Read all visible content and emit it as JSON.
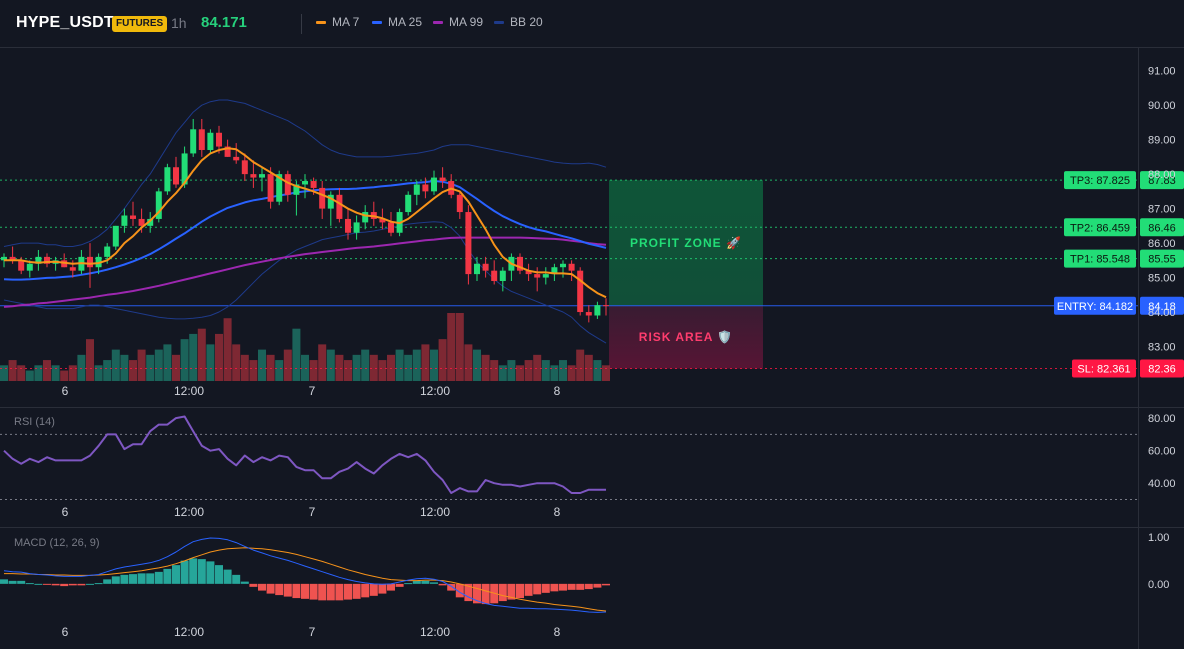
{
  "header": {
    "symbol": "HYPE_USDT",
    "badge": "FUTURES",
    "interval": "1h",
    "last_price": "84.171",
    "legend": [
      {
        "label": "MA 7",
        "color": "#f7931a"
      },
      {
        "label": "MA 25",
        "color": "#2962ff"
      },
      {
        "label": "MA 99",
        "color": "#9c27b0"
      },
      {
        "label": "BB 20",
        "color": "#1e3a8a"
      }
    ]
  },
  "colors": {
    "up": "#26a69a",
    "up_bright": "#22dd77",
    "down": "#f23645",
    "background": "#131722",
    "grid": "#1e222d",
    "profit": "#00c853",
    "risk": "#ff1744"
  },
  "chart_data": [
    {
      "type": "candlestick",
      "title": "",
      "time_labels": [
        "6",
        "12:00",
        "7",
        "12:00",
        "8"
      ],
      "y_ticks": [
        "91.00",
        "90.00",
        "89.00",
        "88.00",
        "87.00",
        "86.00",
        "85.00",
        "84.00",
        "83.00"
      ],
      "ylim": [
        82.0,
        91.6
      ],
      "price_levels": [
        {
          "name": "TP3",
          "label": "TP3: 87.825",
          "axis": "87.83",
          "value": 87.825,
          "color": "#22dd77"
        },
        {
          "name": "TP2",
          "label": "TP2: 86.459",
          "axis": "86.46",
          "value": 86.459,
          "color": "#22dd77"
        },
        {
          "name": "TP1",
          "label": "TP1: 85.548",
          "axis": "85.55",
          "value": 85.548,
          "color": "#22dd77"
        },
        {
          "name": "ENTRY",
          "label": "ENTRY: 84.182",
          "axis": "84.18",
          "value": 84.182,
          "color": "#2962ff"
        },
        {
          "name": "SL",
          "label": "SL: 82.361",
          "axis": "82.36",
          "value": 82.361,
          "color": "#ff1744"
        }
      ],
      "zones": [
        {
          "label": "PROFIT ZONE 🚀",
          "from": 84.182,
          "to": 87.825
        },
        {
          "label": "RISK AREA 🛡️",
          "from": 82.361,
          "to": 84.182
        }
      ],
      "candles": [
        [
          85.5,
          85.7,
          85.3,
          85.6
        ],
        [
          85.6,
          85.9,
          85.4,
          85.5
        ],
        [
          85.5,
          85.6,
          85.1,
          85.2
        ],
        [
          85.2,
          85.5,
          85.0,
          85.4
        ],
        [
          85.4,
          85.8,
          85.2,
          85.6
        ],
        [
          85.6,
          85.7,
          85.3,
          85.4
        ],
        [
          85.4,
          85.6,
          85.2,
          85.5
        ],
        [
          85.5,
          85.7,
          85.3,
          85.3
        ],
        [
          85.3,
          85.5,
          85.0,
          85.2
        ],
        [
          85.2,
          85.8,
          85.1,
          85.6
        ],
        [
          85.6,
          86.0,
          84.7,
          85.3
        ],
        [
          85.3,
          85.7,
          85.1,
          85.6
        ],
        [
          85.6,
          86.0,
          85.4,
          85.9
        ],
        [
          85.9,
          86.5,
          85.8,
          86.5
        ],
        [
          86.5,
          87.0,
          86.3,
          86.8
        ],
        [
          86.8,
          87.2,
          86.5,
          86.7
        ],
        [
          86.7,
          87.0,
          86.3,
          86.5
        ],
        [
          86.5,
          86.9,
          86.3,
          86.7
        ],
        [
          86.7,
          87.6,
          86.6,
          87.5
        ],
        [
          87.5,
          88.3,
          87.4,
          88.2
        ],
        [
          88.2,
          88.5,
          87.6,
          87.7
        ],
        [
          87.7,
          88.8,
          87.6,
          88.6
        ],
        [
          88.6,
          89.6,
          88.5,
          89.3
        ],
        [
          89.3,
          89.6,
          88.5,
          88.7
        ],
        [
          88.7,
          89.3,
          88.6,
          89.2
        ],
        [
          89.2,
          89.4,
          88.6,
          88.8
        ],
        [
          88.8,
          89.0,
          88.5,
          88.5
        ],
        [
          88.5,
          88.9,
          88.3,
          88.4
        ],
        [
          88.4,
          88.6,
          87.8,
          88.0
        ],
        [
          88.0,
          88.4,
          87.6,
          87.9
        ],
        [
          87.9,
          88.2,
          87.5,
          88.0
        ],
        [
          88.0,
          88.2,
          87.0,
          87.2
        ],
        [
          87.2,
          88.1,
          87.1,
          88.0
        ],
        [
          88.0,
          88.1,
          87.2,
          87.4
        ],
        [
          87.4,
          87.8,
          86.8,
          87.7
        ],
        [
          87.7,
          88.0,
          87.3,
          87.8
        ],
        [
          87.8,
          87.9,
          87.4,
          87.6
        ],
        [
          87.6,
          87.8,
          86.7,
          87.0
        ],
        [
          87.0,
          87.5,
          86.5,
          87.4
        ],
        [
          87.4,
          87.6,
          86.6,
          86.7
        ],
        [
          86.7,
          87.0,
          86.1,
          86.3
        ],
        [
          86.3,
          86.8,
          86.1,
          86.6
        ],
        [
          86.6,
          87.1,
          86.4,
          86.9
        ],
        [
          86.9,
          87.2,
          86.5,
          86.7
        ],
        [
          86.7,
          87.0,
          86.4,
          86.6
        ],
        [
          86.6,
          86.9,
          86.2,
          86.3
        ],
        [
          86.3,
          87.0,
          86.2,
          86.9
        ],
        [
          86.9,
          87.5,
          86.8,
          87.4
        ],
        [
          87.4,
          87.8,
          87.1,
          87.7
        ],
        [
          87.7,
          87.9,
          87.3,
          87.5
        ],
        [
          87.5,
          88.1,
          87.4,
          87.9
        ],
        [
          87.9,
          88.2,
          87.6,
          87.8
        ],
        [
          87.8,
          88.0,
          87.3,
          87.4
        ],
        [
          87.4,
          87.5,
          86.7,
          86.9
        ],
        [
          86.9,
          87.1,
          84.8,
          85.1
        ],
        [
          85.1,
          85.6,
          84.9,
          85.4
        ],
        [
          85.4,
          85.6,
          85.0,
          85.2
        ],
        [
          85.2,
          85.5,
          84.8,
          84.9
        ],
        [
          84.9,
          85.3,
          84.6,
          85.2
        ],
        [
          85.2,
          85.7,
          84.9,
          85.6
        ],
        [
          85.6,
          85.7,
          85.1,
          85.2
        ],
        [
          85.2,
          85.4,
          84.9,
          85.1
        ],
        [
          85.1,
          85.3,
          84.6,
          85.0
        ],
        [
          85.0,
          85.3,
          84.8,
          85.1
        ],
        [
          85.1,
          85.4,
          84.9,
          85.3
        ],
        [
          85.3,
          85.5,
          85.0,
          85.4
        ],
        [
          85.4,
          85.5,
          84.9,
          85.2
        ],
        [
          85.2,
          85.3,
          83.9,
          84.0
        ],
        [
          84.0,
          84.2,
          83.7,
          83.9
        ],
        [
          83.9,
          84.3,
          83.8,
          84.2
        ],
        [
          84.2,
          84.4,
          83.9,
          84.171
        ]
      ],
      "volume": [
        3,
        4,
        3,
        2,
        3,
        4,
        3,
        2,
        3,
        5,
        8,
        3,
        4,
        6,
        5,
        4,
        6,
        5,
        6,
        7,
        5,
        8,
        9,
        10,
        7,
        9,
        12,
        7,
        5,
        4,
        6,
        5,
        4,
        6,
        10,
        5,
        4,
        7,
        6,
        5,
        4,
        5,
        6,
        5,
        4,
        5,
        6,
        5,
        6,
        7,
        6,
        8,
        13,
        13,
        7,
        6,
        5,
        4,
        3,
        4,
        3,
        4,
        5,
        4,
        3,
        4,
        3,
        6,
        5,
        4,
        3
      ],
      "ma7": [
        85.5,
        85.5,
        85.5,
        85.45,
        85.43,
        85.45,
        85.46,
        85.43,
        85.4,
        85.42,
        85.4,
        85.42,
        85.5,
        85.7,
        86.0,
        86.2,
        86.45,
        86.65,
        86.9,
        87.2,
        87.45,
        87.75,
        88.1,
        88.4,
        88.6,
        88.7,
        88.75,
        88.72,
        88.55,
        88.35,
        88.2,
        88.05,
        87.9,
        87.75,
        87.65,
        87.58,
        87.5,
        87.4,
        87.3,
        87.15,
        87.0,
        86.88,
        86.8,
        86.78,
        86.72,
        86.62,
        86.58,
        86.7,
        86.9,
        87.1,
        87.3,
        87.48,
        87.58,
        87.5,
        87.2,
        86.8,
        86.4,
        85.95,
        85.6,
        85.4,
        85.3,
        85.2,
        85.15,
        85.15,
        85.12,
        85.12,
        85.1,
        84.92,
        84.72,
        84.55,
        84.43
      ],
      "ma25": [
        84.95,
        84.94,
        84.94,
        84.95,
        84.97,
        84.99,
        85.0,
        85.02,
        85.04,
        85.08,
        85.12,
        85.17,
        85.23,
        85.3,
        85.38,
        85.47,
        85.57,
        85.68,
        85.82,
        85.97,
        86.13,
        86.28,
        86.45,
        86.62,
        86.77,
        86.9,
        87.02,
        87.1,
        87.18,
        87.24,
        87.28,
        87.33,
        87.38,
        87.42,
        87.47,
        87.5,
        87.53,
        87.55,
        87.56,
        87.57,
        87.57,
        87.58,
        87.6,
        87.62,
        87.65,
        87.67,
        87.7,
        87.73,
        87.75,
        87.77,
        87.8,
        87.78,
        87.72,
        87.62,
        87.45,
        87.28,
        87.1,
        86.93,
        86.78,
        86.66,
        86.55,
        86.46,
        86.39,
        86.34,
        86.27,
        86.2,
        86.14,
        86.06,
        85.98,
        85.92,
        85.86
      ],
      "ma99": [
        84.15,
        84.17,
        84.2,
        84.22,
        84.25,
        84.27,
        84.3,
        84.33,
        84.36,
        84.39,
        84.42,
        84.46,
        84.5,
        84.53,
        84.57,
        84.61,
        84.66,
        84.71,
        84.76,
        84.82,
        84.88,
        84.94,
        85.0,
        85.06,
        85.12,
        85.18,
        85.24,
        85.3,
        85.36,
        85.41,
        85.46,
        85.51,
        85.56,
        85.6,
        85.64,
        85.68,
        85.71,
        85.74,
        85.77,
        85.8,
        85.83,
        85.86,
        85.88,
        85.9,
        85.93,
        85.96,
        85.99,
        86.02,
        86.05,
        86.08,
        86.1,
        86.13,
        86.15,
        86.16,
        86.16,
        86.16,
        86.16,
        86.16,
        86.16,
        86.16,
        86.16,
        86.15,
        86.14,
        86.13,
        86.12,
        86.1,
        86.07,
        86.04,
        86.0,
        85.97,
        85.95
      ],
      "bb_upper": [
        85.9,
        85.95,
        86.0,
        86.0,
        86.0,
        85.95,
        85.95,
        85.9,
        85.9,
        85.95,
        86.05,
        86.2,
        86.4,
        86.7,
        87.0,
        87.35,
        87.7,
        88.0,
        88.4,
        88.8,
        89.2,
        89.5,
        89.8,
        90.0,
        90.1,
        90.15,
        90.15,
        90.1,
        90.05,
        89.95,
        89.85,
        89.75,
        89.65,
        89.55,
        89.4,
        89.25,
        89.05,
        88.85,
        88.7,
        88.6,
        88.55,
        88.5,
        88.5,
        88.5,
        88.5,
        88.52,
        88.55,
        88.58,
        88.6,
        88.65,
        88.7,
        88.8,
        88.85,
        88.85,
        88.85,
        88.8,
        88.75,
        88.7,
        88.65,
        88.6,
        88.55,
        88.5,
        88.45,
        88.4,
        88.35,
        88.32,
        88.3,
        88.3,
        88.32,
        88.28,
        88.2
      ],
      "bb_lower": [
        84.35,
        84.3,
        84.25,
        84.2,
        84.15,
        84.1,
        84.1,
        84.1,
        84.1,
        84.15,
        84.2,
        84.2,
        84.15,
        84.1,
        84.05,
        84.0,
        83.95,
        83.9,
        83.85,
        83.82,
        83.8,
        83.8,
        83.82,
        83.85,
        83.9,
        84.0,
        84.15,
        84.35,
        84.6,
        84.85,
        85.1,
        85.3,
        85.5,
        85.65,
        85.8,
        85.9,
        86.0,
        86.1,
        86.15,
        86.2,
        86.25,
        86.3,
        86.32,
        86.35,
        86.4,
        86.45,
        86.5,
        86.55,
        86.58,
        86.6,
        86.62,
        86.6,
        86.45,
        86.2,
        85.8,
        85.45,
        85.2,
        84.95,
        84.75,
        84.6,
        84.5,
        84.4,
        84.3,
        84.2,
        84.1,
        84.0,
        83.85,
        83.6,
        83.4,
        83.25,
        83.1
      ]
    },
    {
      "type": "line",
      "title": "RSI (14)",
      "y_ticks": [
        "80.00",
        "60.00",
        "40.00"
      ],
      "ylim": [
        26,
        85
      ],
      "reference_lines": [
        70,
        30
      ],
      "values": [
        60,
        55,
        52,
        55,
        53,
        56,
        54,
        54,
        54,
        54,
        57,
        63,
        70,
        70,
        61,
        64,
        64,
        72,
        76,
        76,
        80,
        81,
        72,
        63,
        60,
        61,
        55,
        51,
        57,
        53,
        56,
        54,
        57,
        56,
        50,
        48,
        48,
        43,
        43,
        47,
        49,
        53,
        49,
        46,
        51,
        55,
        58,
        56,
        58,
        54,
        47,
        42,
        34,
        37,
        35,
        35,
        42,
        40,
        39,
        39,
        38,
        39,
        40,
        40,
        40,
        38,
        34,
        34,
        36,
        36,
        36
      ]
    },
    {
      "type": "line",
      "title": "MACD (12, 26, 9)",
      "y_ticks": [
        "1.00",
        "0.00"
      ],
      "ylim": [
        -0.9,
        1.15
      ],
      "macd": [
        0.28,
        0.26,
        0.25,
        0.22,
        0.2,
        0.19,
        0.17,
        0.16,
        0.16,
        0.16,
        0.18,
        0.2,
        0.26,
        0.32,
        0.36,
        0.39,
        0.42,
        0.45,
        0.5,
        0.58,
        0.68,
        0.8,
        0.9,
        0.95,
        0.98,
        0.97,
        0.94,
        0.88,
        0.8,
        0.72,
        0.66,
        0.6,
        0.55,
        0.5,
        0.44,
        0.38,
        0.32,
        0.26,
        0.2,
        0.14,
        0.09,
        0.05,
        0.02,
        0.0,
        -0.01,
        0.0,
        0.04,
        0.08,
        0.11,
        0.12,
        0.1,
        0.05,
        -0.05,
        -0.18,
        -0.28,
        -0.36,
        -0.42,
        -0.46,
        -0.48,
        -0.5,
        -0.52,
        -0.52,
        -0.53,
        -0.53,
        -0.54,
        -0.55,
        -0.56,
        -0.58,
        -0.6,
        -0.61,
        -0.6
      ],
      "signal": [
        0.22,
        0.22,
        0.21,
        0.21,
        0.2,
        0.2,
        0.19,
        0.19,
        0.18,
        0.18,
        0.18,
        0.19,
        0.2,
        0.22,
        0.24,
        0.26,
        0.28,
        0.31,
        0.34,
        0.38,
        0.43,
        0.49,
        0.56,
        0.62,
        0.68,
        0.72,
        0.75,
        0.76,
        0.77,
        0.76,
        0.75,
        0.73,
        0.7,
        0.67,
        0.63,
        0.58,
        0.53,
        0.48,
        0.42,
        0.36,
        0.3,
        0.25,
        0.2,
        0.16,
        0.12,
        0.09,
        0.08,
        0.07,
        0.07,
        0.08,
        0.08,
        0.07,
        0.04,
        0.0,
        -0.05,
        -0.1,
        -0.15,
        -0.2,
        -0.25,
        -0.29,
        -0.33,
        -0.36,
        -0.39,
        -0.41,
        -0.44,
        -0.46,
        -0.48,
        -0.5,
        -0.53,
        -0.56,
        -0.58
      ]
    }
  ]
}
